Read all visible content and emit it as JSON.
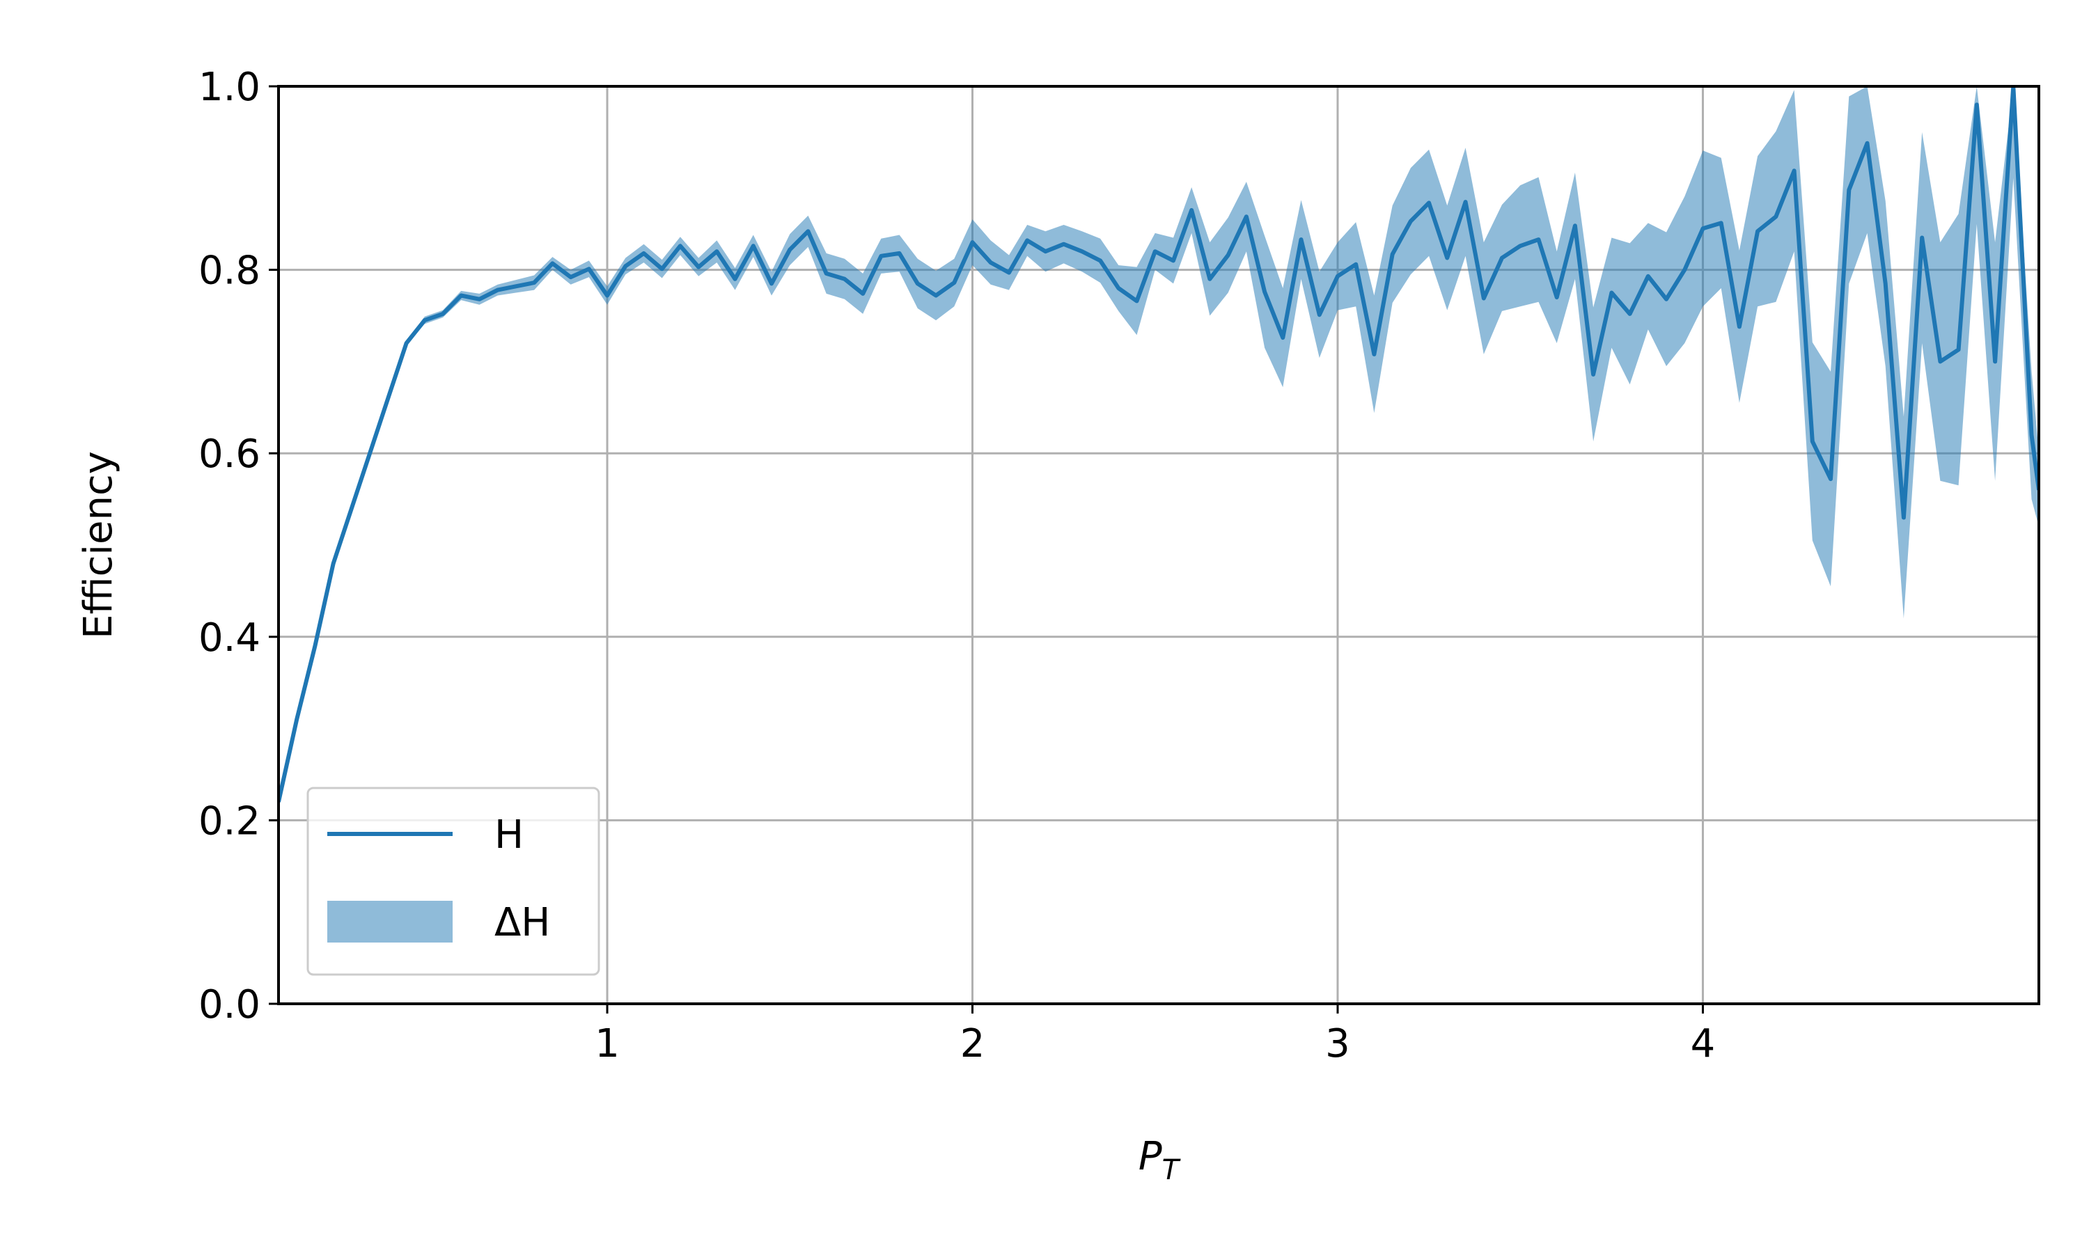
{
  "chart_data": {
    "type": "line",
    "title": "",
    "xlabel": "P_T",
    "ylabel": "Efficiency",
    "xlim": [
      0.1,
      4.92
    ],
    "ylim": [
      0.0,
      1.0
    ],
    "xticks": [
      "1",
      "2",
      "3",
      "4"
    ],
    "xtick_values": [
      1,
      2,
      3,
      4
    ],
    "yticks": [
      "0.0",
      "0.2",
      "0.4",
      "0.6",
      "0.8",
      "1.0"
    ],
    "ytick_values": [
      0.0,
      0.2,
      0.4,
      0.6,
      0.8,
      1.0
    ],
    "grid": true,
    "legend_position": "lower-left",
    "colors": {
      "line": "#1f77b4",
      "band": "#1f77b4"
    },
    "series": [
      {
        "name": "H",
        "kind": "line",
        "x": [
          0.1,
          0.15,
          0.2,
          0.25,
          0.3,
          0.35,
          0.4,
          0.45,
          0.5,
          0.55,
          0.6,
          0.65,
          0.7,
          0.75,
          0.8,
          0.85,
          0.9,
          0.95,
          1.0,
          1.05,
          1.1,
          1.15,
          1.2,
          1.25,
          1.3,
          1.35,
          1.4,
          1.45,
          1.5,
          1.55,
          1.6,
          1.65,
          1.7,
          1.75,
          1.8,
          1.85,
          1.9,
          1.95,
          2.0,
          2.05,
          2.1,
          2.15,
          2.2,
          2.25,
          2.3,
          2.35,
          2.4,
          2.45,
          2.5,
          2.55,
          2.6,
          2.65,
          2.7,
          2.75,
          2.8,
          2.85,
          2.9,
          2.95,
          3.0,
          3.05,
          3.1,
          3.15,
          3.2,
          3.25,
          3.3,
          3.35,
          3.4,
          3.45,
          3.5,
          3.55,
          3.6,
          3.65,
          3.7,
          3.75,
          3.8,
          3.85,
          3.9,
          3.95,
          4.0,
          4.05,
          4.1,
          4.15,
          4.2,
          4.25,
          4.3,
          4.35,
          4.4,
          4.45,
          4.5,
          4.55,
          4.6,
          4.65,
          4.7,
          4.75,
          4.8,
          4.85,
          4.9,
          4.92
        ],
        "y": [
          0.22,
          0.31,
          0.39,
          0.48,
          0.54,
          0.6,
          0.66,
          0.72,
          0.745,
          0.752,
          0.772,
          0.768,
          0.778,
          0.782,
          0.786,
          0.807,
          0.792,
          0.801,
          0.772,
          0.804,
          0.818,
          0.801,
          0.826,
          0.803,
          0.82,
          0.79,
          0.826,
          0.785,
          0.822,
          0.842,
          0.796,
          0.79,
          0.774,
          0.815,
          0.818,
          0.785,
          0.772,
          0.786,
          0.83,
          0.808,
          0.797,
          0.832,
          0.82,
          0.828,
          0.82,
          0.81,
          0.78,
          0.766,
          0.82,
          0.81,
          0.865,
          0.79,
          0.816,
          0.858,
          0.776,
          0.726,
          0.833,
          0.751,
          0.793,
          0.806,
          0.708,
          0.817,
          0.853,
          0.873,
          0.813,
          0.874,
          0.769,
          0.813,
          0.826,
          0.833,
          0.77,
          0.848,
          0.686,
          0.775,
          0.752,
          0.793,
          0.768,
          0.8,
          0.845,
          0.851,
          0.738,
          0.842,
          0.858,
          0.908,
          0.613,
          0.572,
          0.887,
          0.938,
          0.785,
          0.53,
          0.835,
          0.7,
          0.713,
          0.98,
          0.7,
          1.0,
          0.62,
          0.56
        ]
      },
      {
        "name": "ΔH",
        "kind": "band",
        "x": [
          0.1,
          0.15,
          0.2,
          0.25,
          0.3,
          0.35,
          0.4,
          0.45,
          0.5,
          0.55,
          0.6,
          0.65,
          0.7,
          0.75,
          0.8,
          0.85,
          0.9,
          0.95,
          1.0,
          1.05,
          1.1,
          1.15,
          1.2,
          1.25,
          1.3,
          1.35,
          1.4,
          1.45,
          1.5,
          1.55,
          1.6,
          1.65,
          1.7,
          1.75,
          1.8,
          1.85,
          1.9,
          1.95,
          2.0,
          2.05,
          2.1,
          2.15,
          2.2,
          2.25,
          2.3,
          2.35,
          2.4,
          2.45,
          2.5,
          2.55,
          2.6,
          2.65,
          2.7,
          2.75,
          2.8,
          2.85,
          2.9,
          2.95,
          3.0,
          3.05,
          3.1,
          3.15,
          3.2,
          3.25,
          3.3,
          3.35,
          3.4,
          3.45,
          3.5,
          3.55,
          3.6,
          3.65,
          3.7,
          3.75,
          3.8,
          3.85,
          3.9,
          3.95,
          4.0,
          4.05,
          4.1,
          4.15,
          4.2,
          4.25,
          4.3,
          4.35,
          4.4,
          4.45,
          4.5,
          4.55,
          4.6,
          4.65,
          4.7,
          4.75,
          4.8,
          4.85,
          4.9,
          4.92
        ],
        "lower": [
          0.218,
          0.308,
          0.388,
          0.478,
          0.538,
          0.598,
          0.658,
          0.718,
          0.741,
          0.748,
          0.767,
          0.762,
          0.772,
          0.775,
          0.778,
          0.8,
          0.784,
          0.792,
          0.762,
          0.795,
          0.808,
          0.791,
          0.816,
          0.793,
          0.808,
          0.778,
          0.814,
          0.772,
          0.805,
          0.825,
          0.774,
          0.768,
          0.752,
          0.796,
          0.798,
          0.758,
          0.745,
          0.76,
          0.805,
          0.784,
          0.778,
          0.815,
          0.798,
          0.807,
          0.798,
          0.786,
          0.755,
          0.729,
          0.8,
          0.785,
          0.84,
          0.75,
          0.775,
          0.82,
          0.715,
          0.672,
          0.79,
          0.704,
          0.756,
          0.76,
          0.644,
          0.764,
          0.795,
          0.815,
          0.756,
          0.815,
          0.708,
          0.755,
          0.76,
          0.765,
          0.72,
          0.79,
          0.613,
          0.715,
          0.675,
          0.735,
          0.695,
          0.72,
          0.76,
          0.78,
          0.655,
          0.76,
          0.765,
          0.82,
          0.505,
          0.455,
          0.785,
          0.84,
          0.695,
          0.42,
          0.72,
          0.57,
          0.565,
          0.85,
          0.57,
          0.9,
          0.55,
          0.52
        ],
        "upper": [
          0.222,
          0.312,
          0.392,
          0.482,
          0.542,
          0.602,
          0.662,
          0.722,
          0.749,
          0.756,
          0.777,
          0.774,
          0.784,
          0.789,
          0.794,
          0.814,
          0.8,
          0.81,
          0.782,
          0.813,
          0.828,
          0.811,
          0.836,
          0.813,
          0.832,
          0.802,
          0.838,
          0.798,
          0.839,
          0.859,
          0.818,
          0.812,
          0.796,
          0.834,
          0.838,
          0.812,
          0.799,
          0.812,
          0.855,
          0.832,
          0.816,
          0.849,
          0.842,
          0.849,
          0.842,
          0.834,
          0.805,
          0.803,
          0.84,
          0.835,
          0.89,
          0.83,
          0.857,
          0.896,
          0.837,
          0.78,
          0.876,
          0.798,
          0.83,
          0.852,
          0.772,
          0.87,
          0.911,
          0.931,
          0.87,
          0.933,
          0.83,
          0.871,
          0.892,
          0.901,
          0.82,
          0.906,
          0.759,
          0.835,
          0.829,
          0.851,
          0.841,
          0.88,
          0.93,
          0.922,
          0.821,
          0.924,
          0.951,
          0.996,
          0.721,
          0.689,
          0.989,
          1.0,
          0.875,
          0.64,
          0.95,
          0.83,
          0.861,
          1.0,
          0.83,
          1.0,
          0.69,
          0.6
        ]
      }
    ]
  }
}
